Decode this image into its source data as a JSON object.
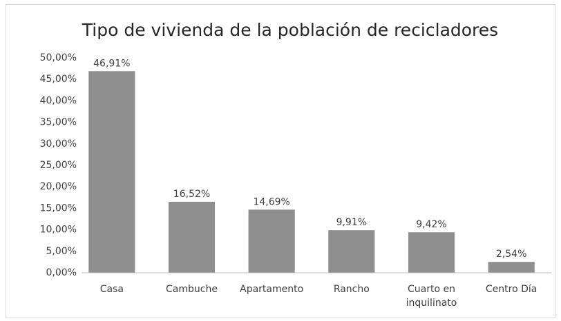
{
  "chart_data": {
    "type": "bar",
    "title": "Tipo de vivienda de la población de recicladores",
    "categories": [
      "Casa",
      "Cambuche",
      "Apartamento",
      "Rancho",
      "Cuarto en inquilinato",
      "Centro Día"
    ],
    "values": [
      46.91,
      16.52,
      14.69,
      9.91,
      9.42,
      2.54
    ],
    "value_labels": [
      "46,91%",
      "16,52%",
      "14,69%",
      "9,91%",
      "9,42%",
      "2,54%"
    ],
    "color": "#8f8f8f",
    "ylim": [
      0,
      50
    ],
    "yticks": [
      {
        "value": 0,
        "label": "0,00%"
      },
      {
        "value": 5,
        "label": "5,00%"
      },
      {
        "value": 10,
        "label": "10,00%"
      },
      {
        "value": 15,
        "label": "15,00%"
      },
      {
        "value": 20,
        "label": "20,00%"
      },
      {
        "value": 25,
        "label": "25,00%"
      },
      {
        "value": 30,
        "label": "30,00%"
      },
      {
        "value": 35,
        "label": "35,00%"
      },
      {
        "value": 40,
        "label": "40,00%"
      },
      {
        "value": 45,
        "label": "45,00%"
      },
      {
        "value": 50,
        "label": "50,00%"
      }
    ],
    "grid": false
  }
}
